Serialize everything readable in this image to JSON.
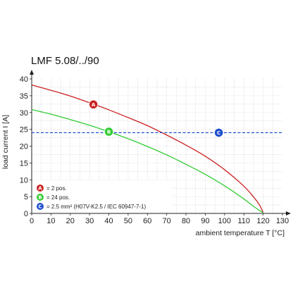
{
  "chart_data": {
    "type": "line",
    "title": "LMF 5.08/../90",
    "xlabel": "ambient temperature T [°C]",
    "ylabel": "load current I [A]",
    "xlim": [
      0,
      130
    ],
    "ylim": [
      0,
      40
    ],
    "x_ticks": [
      "0",
      "10",
      "20",
      "30",
      "40",
      "50",
      "60",
      "70",
      "80",
      "90",
      "100",
      "110",
      "120",
      "130"
    ],
    "y_ticks": [
      "0",
      "5",
      "10",
      "15",
      "20",
      "25",
      "30",
      "35",
      "40"
    ],
    "grid": true,
    "legend_position": "bottom-left",
    "series": [
      {
        "marker": "A",
        "label": "= 2 pos.",
        "color": "#cc2222",
        "style": "solid",
        "x": [
          0,
          10,
          20,
          30,
          40,
          50,
          60,
          70,
          80,
          90,
          100,
          110,
          115,
          118,
          120
        ],
        "y": [
          38.2,
          36.6,
          34.9,
          32.9,
          30.8,
          28.5,
          26.1,
          23.3,
          20.3,
          17.0,
          13.0,
          8.1,
          4.9,
          2.6,
          0.3
        ],
        "marker_at": [
          32,
          32.4
        ]
      },
      {
        "marker": "B",
        "label": "= 24 pos.",
        "color": "#33cc33",
        "style": "solid",
        "x": [
          0,
          10,
          20,
          30,
          40,
          50,
          60,
          70,
          80,
          90,
          100,
          110,
          115,
          118,
          120
        ],
        "y": [
          30.9,
          29.5,
          27.9,
          26.2,
          24.3,
          22.2,
          19.9,
          17.4,
          14.6,
          11.6,
          8.2,
          4.3,
          2.1,
          0.9,
          0.2
        ],
        "marker_at": [
          40,
          24.3
        ]
      },
      {
        "marker": "C",
        "label": "= 2.5 mm² (H07V-K2.5 / IEC 60947-7-1)",
        "color": "#1f4fcf",
        "style": "dashed",
        "x": [
          0,
          130
        ],
        "y": [
          24,
          24
        ],
        "marker_at": [
          97,
          24
        ]
      }
    ]
  }
}
